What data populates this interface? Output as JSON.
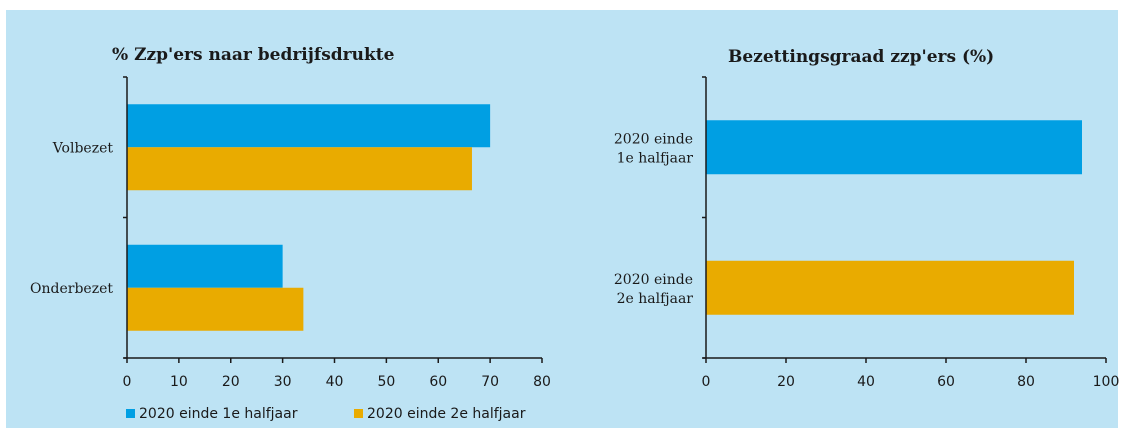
{
  "colors": {
    "series1": "#009fe3",
    "series2": "#e9ab00",
    "background": "#bde3f4"
  },
  "chart_data": [
    {
      "type": "bar",
      "orientation": "horizontal",
      "title": "% Zzp'ers naar bedrijfsdrukte",
      "categories": [
        "Volbezet",
        "Onderbezet"
      ],
      "series": [
        {
          "name": "2020 einde 1e halfjaar",
          "values": [
            70,
            30
          ]
        },
        {
          "name": "2020 einde 2e halfjaar",
          "values": [
            66.5,
            34
          ]
        }
      ],
      "xlim": [
        0,
        80
      ],
      "xticks": [
        "0",
        "10",
        "20",
        "30",
        "40",
        "50",
        "60",
        "70",
        "80"
      ],
      "legend": "bottom",
      "grid": false
    },
    {
      "type": "bar",
      "orientation": "horizontal",
      "title": "Bezettingsgraad zzp'ers (%)",
      "categories": [
        [
          "2020 einde",
          "1e halfjaar"
        ],
        [
          "2020 einde",
          "2e halfjaar"
        ]
      ],
      "values": [
        94,
        92
      ],
      "xlim": [
        0,
        100
      ],
      "xticks": [
        "0",
        "20",
        "40",
        "60",
        "80",
        "100"
      ],
      "grid": false
    }
  ]
}
